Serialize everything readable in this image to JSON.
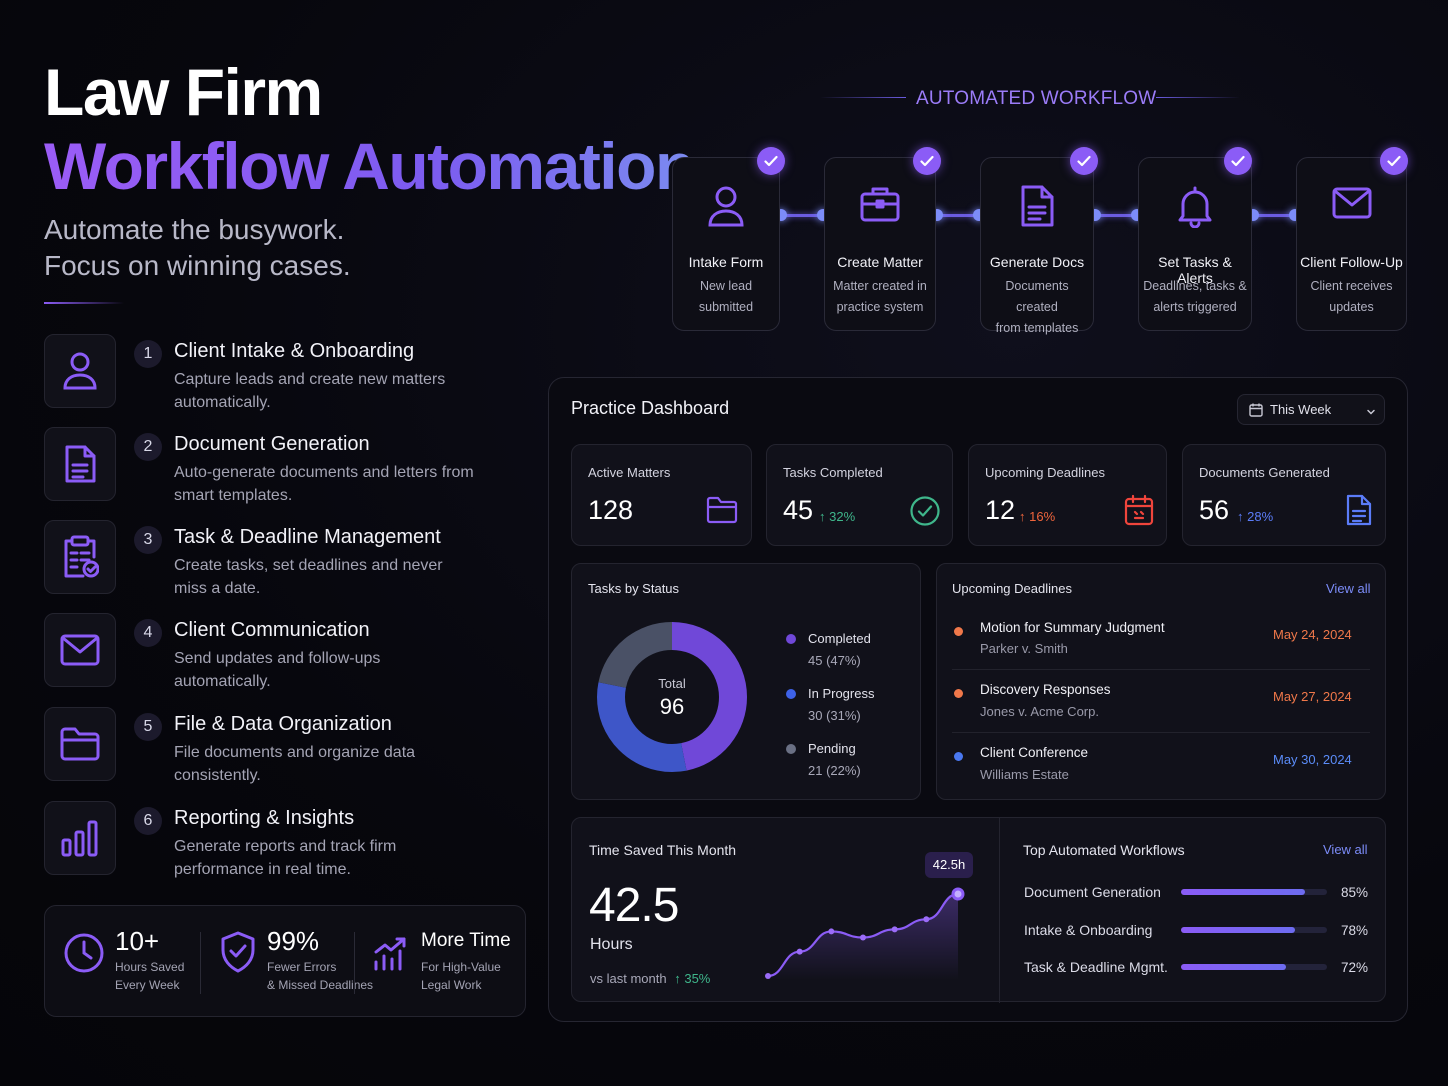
{
  "hero": {
    "title_line1": "Law Firm",
    "title_line2": "Workflow Automation",
    "subtitle_line1": "Automate the busywork.",
    "subtitle_line2": "Focus on winning cases."
  },
  "features": [
    {
      "num": "1",
      "title": "Client Intake & Onboarding",
      "desc": "Capture leads and create new matters automatically.",
      "icon": "user-icon"
    },
    {
      "num": "2",
      "title": "Document Generation",
      "desc": "Auto-generate documents and letters from smart templates.",
      "icon": "document-icon"
    },
    {
      "num": "3",
      "title": "Task & Deadline Management",
      "desc": "Create tasks, set deadlines and never miss a date.",
      "icon": "clipboard-check-icon"
    },
    {
      "num": "4",
      "title": "Client Communication",
      "desc": "Send updates and follow-ups automatically.",
      "icon": "mail-icon"
    },
    {
      "num": "5",
      "title": "File & Data Organization",
      "desc": "File documents and organize data consistently.",
      "icon": "folder-icon"
    },
    {
      "num": "6",
      "title": "Reporting & Insights",
      "desc": "Generate reports and track firm performance in real time.",
      "icon": "bar-chart-icon"
    }
  ],
  "stats": [
    {
      "big": "10+",
      "line1": "Hours Saved",
      "line2": "Every Week",
      "icon": "clock-icon"
    },
    {
      "big": "99%",
      "line1": "Fewer Errors",
      "line2": "& Missed Deadlines",
      "icon": "shield-check-icon"
    },
    {
      "big": "More Time",
      "line1": "For High-Value",
      "line2": "Legal Work",
      "icon": "growth-chart-icon"
    }
  ],
  "workflow": {
    "heading": "AUTOMATED WORKFLOW",
    "steps": [
      {
        "title": "Intake Form",
        "line1": "New lead",
        "line2": "submitted",
        "icon": "user-icon"
      },
      {
        "title": "Create Matter",
        "line1": "Matter created in",
        "line2": "practice system",
        "icon": "briefcase-icon"
      },
      {
        "title": "Generate Docs",
        "line1": "Documents created",
        "line2": "from templates",
        "icon": "document-icon"
      },
      {
        "title": "Set Tasks & Alerts",
        "line1": "Deadlines, tasks &",
        "line2": "alerts triggered",
        "icon": "bell-icon"
      },
      {
        "title": "Client Follow-Up",
        "line1": "Client receives",
        "line2": "updates",
        "icon": "mail-icon"
      }
    ]
  },
  "dashboard": {
    "title": "Practice Dashboard",
    "period": "This Week",
    "kpis": [
      {
        "label": "Active Matters",
        "value": "128",
        "delta": "",
        "color": "#8b5cf6",
        "icon": "folder-icon"
      },
      {
        "label": "Tasks Completed",
        "value": "45",
        "delta": "32%",
        "color": "#3fb68b",
        "icon": "check-circle-icon"
      },
      {
        "label": "Upcoming Deadlines",
        "value": "12",
        "delta": "16%",
        "color": "#f0653c",
        "icon": "calendar-icon"
      },
      {
        "label": "Documents Generated",
        "value": "56",
        "delta": "28%",
        "color": "#5b7cf8",
        "icon": "document-icon"
      }
    ],
    "tasks": {
      "label": "Tasks by Status",
      "total_label": "Total",
      "total": "96",
      "items": [
        {
          "name": "Completed",
          "value": "45 (47%)",
          "count": 45,
          "color": "#7048d8"
        },
        {
          "name": "In Progress",
          "value": "30 (31%)",
          "count": 30,
          "color": "#3e56c8"
        },
        {
          "name": "Pending",
          "value": "21 (22%)",
          "count": 21,
          "color": "#4a5166"
        }
      ]
    },
    "deadlines": {
      "label": "Upcoming Deadlines",
      "view_all": "View all",
      "items": [
        {
          "title": "Motion for Summary Judgment",
          "case": "Parker v. Smith",
          "date": "May 24, 2024",
          "color": "#f0784a"
        },
        {
          "title": "Discovery Responses",
          "case": "Jones v. Acme Corp.",
          "date": "May 27, 2024",
          "color": "#f0784a"
        },
        {
          "title": "Client Conference",
          "case": "Williams Estate",
          "date": "May 30, 2024",
          "color": "#4a78f0"
        }
      ]
    },
    "time_saved": {
      "label": "Time Saved This Month",
      "value": "42.5",
      "unit": "Hours",
      "compare": "vs last month",
      "delta": "35%",
      "peak_label": "42.5h"
    },
    "top_workflows": {
      "label": "Top Automated Workflows",
      "view_all": "View all",
      "items": [
        {
          "name": "Document Generation",
          "pct": "85%",
          "value": 0.85
        },
        {
          "name": "Intake & Onboarding",
          "pct": "78%",
          "value": 0.78
        },
        {
          "name": "Task & Deadline Mgmt.",
          "pct": "72%",
          "value": 0.72
        }
      ]
    }
  },
  "chart_data": {
    "type": "line",
    "title": "Time Saved This Month",
    "x": [
      1,
      2,
      3,
      4,
      5,
      6,
      7
    ],
    "values": [
      2,
      14,
      24,
      21,
      25,
      30,
      42.5
    ],
    "xlabel": "",
    "ylabel": ""
  }
}
